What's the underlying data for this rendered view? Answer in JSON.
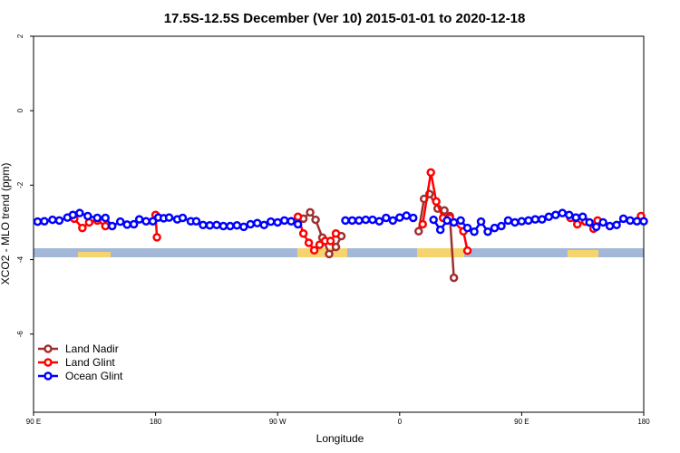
{
  "chart_data": {
    "type": "line",
    "title": "17.5S-12.5S December (Ver 10)   2015-01-01 to 2020-12-18",
    "x_label": "Longitude",
    "y_label": "XCO2 - MLO trend (ppm)",
    "xlim": [
      90,
      540
    ],
    "ylim": [
      -8.1,
      2
    ],
    "xticks": [
      {
        "value": 90,
        "label": "90 E"
      },
      180,
      {
        "value": 270,
        "label": "90 W"
      },
      {
        "value": 360,
        "label": "0"
      },
      {
        "value": 450,
        "label": "90 E"
      },
      {
        "value": 540,
        "label": "180"
      }
    ],
    "yticks": [
      -6,
      -4,
      -2,
      0,
      2
    ],
    "legend": "bottom-left",
    "series": [
      {
        "name": "Land Nadir",
        "color": "#a03030",
        "x": [
          289,
          294,
          298,
          303,
          308,
          313,
          317,
          null,
          374,
          378,
          382,
          388,
          393,
          397,
          400
        ],
        "values": [
          -2.9,
          -2.73,
          -2.93,
          -3.41,
          -3.85,
          -3.66,
          -3.37,
          null,
          -3.24,
          -2.37,
          -2.24,
          -2.63,
          -2.68,
          -2.83,
          -4.49
        ]
      },
      {
        "name": "Land Glint",
        "color": "#ff0000",
        "x": [
          120,
          126,
          131,
          137,
          143,
          null,
          180,
          181,
          null,
          285,
          289,
          293,
          297,
          301,
          305,
          309,
          313,
          null,
          377,
          383,
          387,
          392,
          397,
          407,
          410,
          null,
          486,
          491,
          497,
          503,
          506,
          null,
          538
        ],
        "values": [
          -2.9,
          -3.15,
          -3.0,
          -2.95,
          -3.1,
          null,
          -2.8,
          -3.4,
          null,
          -2.85,
          -3.3,
          -3.55,
          -3.75,
          -3.6,
          -3.5,
          -3.5,
          -3.3,
          null,
          -3.05,
          -1.66,
          -2.44,
          -2.88,
          -2.88,
          -3.24,
          -3.76,
          null,
          -2.88,
          -3.05,
          -2.98,
          -3.17,
          -2.95,
          null,
          -2.83
        ]
      },
      {
        "name": "Ocean Glint",
        "color": "#0000ff",
        "x": [
          93,
          98,
          104,
          109,
          115,
          119,
          124,
          130,
          137,
          143,
          148,
          154,
          159,
          164,
          168,
          173,
          178,
          182,
          186,
          190,
          196,
          200,
          206,
          210,
          215,
          220,
          225,
          230,
          235,
          240,
          245,
          250,
          255,
          260,
          265,
          270,
          275,
          280,
          285,
          null,
          320,
          325,
          330,
          335,
          340,
          345,
          350,
          355,
          360,
          365,
          370,
          null,
          385,
          390,
          395,
          400,
          405,
          410,
          415,
          420,
          425,
          430,
          435,
          440,
          445,
          450,
          455,
          460,
          465,
          470,
          475,
          480,
          485,
          490,
          495,
          500,
          505,
          510,
          515,
          520,
          525,
          530,
          535,
          540
        ],
        "values": [
          -2.98,
          -2.97,
          -2.93,
          -2.95,
          -2.87,
          -2.8,
          -2.75,
          -2.83,
          -2.88,
          -2.88,
          -3.1,
          -2.98,
          -3.06,
          -3.05,
          -2.92,
          -2.97,
          -2.97,
          -2.87,
          -2.89,
          -2.87,
          -2.92,
          -2.88,
          -2.97,
          -2.97,
          -3.07,
          -3.08,
          -3.07,
          -3.1,
          -3.1,
          -3.08,
          -3.12,
          -3.05,
          -3.02,
          -3.07,
          -2.98,
          -3.0,
          -2.95,
          -2.97,
          -3.05,
          null,
          -2.95,
          -2.95,
          -2.95,
          -2.93,
          -2.93,
          -2.97,
          -2.88,
          -2.95,
          -2.87,
          -2.82,
          -2.88,
          null,
          -2.93,
          -3.2,
          -2.95,
          -3.0,
          -2.95,
          -3.15,
          -3.25,
          -2.98,
          -3.25,
          -3.15,
          -3.1,
          -2.95,
          -3.0,
          -2.97,
          -2.95,
          -2.92,
          -2.92,
          -2.85,
          -2.8,
          -2.75,
          -2.8,
          -2.87,
          -2.85,
          -3.0,
          -3.12,
          -3.0,
          -3.1,
          -3.07,
          -2.9,
          -2.95,
          -2.97,
          -2.97
        ]
      }
    ]
  }
}
